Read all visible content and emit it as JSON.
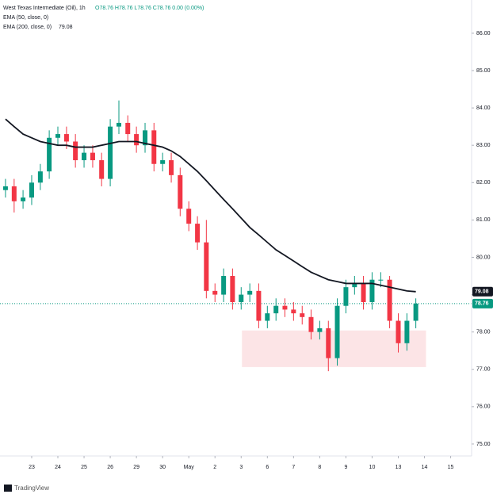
{
  "header": {
    "title": "West Texas Intermediate (Oil), 1h",
    "ohlc": "O78.76 H78.76 L78.76 C78.76 0.00 (0.00%)",
    "indicators": [
      "EMA (50, close, 0)",
      "EMA (200, close, 0)"
    ]
  },
  "chart_data": {
    "type": "candlestick",
    "x": [
      0,
      0.33,
      0.67,
      1,
      1.33,
      1.67,
      2,
      2.33,
      2.67,
      3,
      3.33,
      3.67,
      4,
      4.33,
      4.67,
      5,
      5.33,
      5.67,
      6,
      6.33,
      6.67,
      7,
      7.33,
      7.67,
      8,
      8.33,
      8.67,
      9,
      9.33,
      9.67,
      10,
      10.33,
      10.67,
      11,
      11.33,
      11.67,
      12,
      12.33,
      12.67,
      13,
      13.33,
      13.67,
      14,
      14.33,
      14.67,
      15,
      15.33,
      15.67
    ],
    "open": [
      81.8,
      81.9,
      81.5,
      81.6,
      82.0,
      82.3,
      83.2,
      83.3,
      83.1,
      82.6,
      82.8,
      82.6,
      82.1,
      83.5,
      83.6,
      83.3,
      83.0,
      83.4,
      82.5,
      82.6,
      82.2,
      81.3,
      80.9,
      80.4,
      79.1,
      79.0,
      79.5,
      78.8,
      79.0,
      79.1,
      78.3,
      78.5,
      78.7,
      78.6,
      78.5,
      78.4,
      78.0,
      78.1,
      77.3,
      78.7,
      79.2,
      79.3,
      78.8,
      79.4,
      79.4,
      78.3,
      77.7,
      78.3
    ],
    "high": [
      82.1,
      82.1,
      81.8,
      82.2,
      82.5,
      83.4,
      83.5,
      83.5,
      83.3,
      83.0,
      83.0,
      82.8,
      83.7,
      84.2,
      83.8,
      83.5,
      83.6,
      83.6,
      82.8,
      82.8,
      82.4,
      81.5,
      81.1,
      81.0,
      79.3,
      79.7,
      79.7,
      79.2,
      79.3,
      79.3,
      78.7,
      78.9,
      78.9,
      78.8,
      78.7,
      78.6,
      78.3,
      78.3,
      78.9,
      79.4,
      79.5,
      79.5,
      79.6,
      79.6,
      79.5,
      78.5,
      78.5,
      78.9
    ],
    "low": [
      81.6,
      81.2,
      81.3,
      81.4,
      81.8,
      82.1,
      83.0,
      82.9,
      82.4,
      82.4,
      82.4,
      81.9,
      81.9,
      83.3,
      83.1,
      82.8,
      82.8,
      82.3,
      82.3,
      82.0,
      81.1,
      80.7,
      80.2,
      78.9,
      78.8,
      78.8,
      78.6,
      78.6,
      78.8,
      78.1,
      78.1,
      78.3,
      78.4,
      78.3,
      78.2,
      77.8,
      77.8,
      76.95,
      77.1,
      78.5,
      79.0,
      78.6,
      78.6,
      79.2,
      78.1,
      77.45,
      77.5,
      78.1
    ],
    "close": [
      81.9,
      81.5,
      81.6,
      82.0,
      82.3,
      83.2,
      83.3,
      83.1,
      82.6,
      82.8,
      82.6,
      82.1,
      83.5,
      83.6,
      83.3,
      83.0,
      83.4,
      82.5,
      82.6,
      82.2,
      81.3,
      80.9,
      80.4,
      79.1,
      79.0,
      79.5,
      78.8,
      79.0,
      79.1,
      78.3,
      78.5,
      78.7,
      78.6,
      78.5,
      78.4,
      78.0,
      78.1,
      77.3,
      78.7,
      79.2,
      79.3,
      78.8,
      79.4,
      79.4,
      78.3,
      77.7,
      78.3,
      78.76
    ],
    "up_color": "#089981",
    "down_color": "#f23645",
    "ema": {
      "color": "#131722",
      "values": [
        83.7,
        83.5,
        83.3,
        83.2,
        83.1,
        83.05,
        83.0,
        83.0,
        82.95,
        82.95,
        82.95,
        83.0,
        83.05,
        83.1,
        83.1,
        83.1,
        83.05,
        83.0,
        82.95,
        82.85,
        82.7,
        82.5,
        82.3,
        82.05,
        81.8,
        81.55,
        81.3,
        81.05,
        80.8,
        80.6,
        80.4,
        80.2,
        80.05,
        79.9,
        79.75,
        79.6,
        79.5,
        79.4,
        79.35,
        79.3,
        79.3,
        79.3,
        79.3,
        79.25,
        79.2,
        79.15,
        79.1,
        79.08
      ]
    },
    "xlim": [
      -0.21,
      17.8
    ],
    "xticks": [
      {
        "value": 1,
        "label": "23"
      },
      {
        "value": 2,
        "label": "24"
      },
      {
        "value": 3,
        "label": "25"
      },
      {
        "value": 4,
        "label": "26"
      },
      {
        "value": 5,
        "label": "29"
      },
      {
        "value": 6,
        "label": "30"
      },
      {
        "value": 7,
        "label": "May"
      },
      {
        "value": 8,
        "label": "2"
      },
      {
        "value": 9,
        "label": "3"
      },
      {
        "value": 10,
        "label": "6"
      },
      {
        "value": 11,
        "label": "7"
      },
      {
        "value": 12,
        "label": "8"
      },
      {
        "value": 13,
        "label": "9"
      },
      {
        "value": 14,
        "label": "10"
      },
      {
        "value": 15,
        "label": "13"
      },
      {
        "value": 16,
        "label": "14"
      },
      {
        "value": 17,
        "label": "15"
      }
    ],
    "ylim": [
      74.68,
      86.89
    ],
    "yticks": [
      {
        "value": 75,
        "label": "75.00"
      },
      {
        "value": 76,
        "label": "76.00"
      },
      {
        "value": 77,
        "label": "77.00"
      },
      {
        "value": 78,
        "label": "78.00"
      },
      {
        "value": 79,
        "label": "79.00"
      },
      {
        "value": 80,
        "label": "80.00"
      },
      {
        "value": 81,
        "label": "81.00"
      },
      {
        "value": 82,
        "label": "82.00"
      },
      {
        "value": 83,
        "label": "83.00"
      },
      {
        "value": 84,
        "label": "84.00"
      },
      {
        "value": 85,
        "label": "85.00"
      },
      {
        "value": 86,
        "label": "86.00"
      }
    ],
    "grid": false,
    "last_price": {
      "value": 78.76,
      "label": "78.76",
      "color": "#089981"
    },
    "ema_last": {
      "value": 79.08,
      "label": "79.08",
      "color": "#131722"
    },
    "zone": {
      "x": [
        9.03,
        16.06
      ],
      "y": [
        77.06,
        78.04
      ],
      "color": "#fce4e6"
    }
  },
  "footer": "TradingView"
}
